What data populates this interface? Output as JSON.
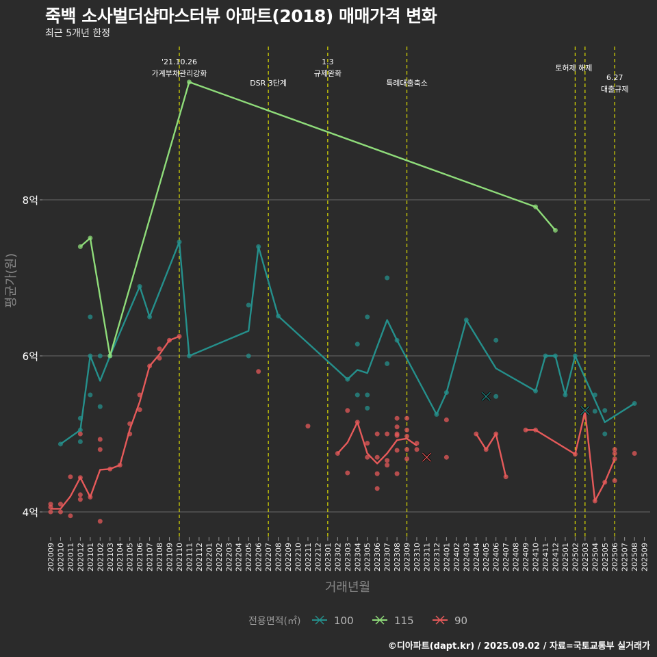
{
  "title": "죽백 소사벌더샵마스터뷰 아파트(2018) 매매가격 변화",
  "subtitle": "최근 5개년 한정",
  "footer": "©디아파트(dapt.kr) / 2025.09.02 / 자료=국토교통부 실거래가",
  "chart_data": {
    "type": "line",
    "xlabel": "거래년월",
    "ylabel": "평균가(원)",
    "ylim": [
      3.6,
      9.9
    ],
    "yticks": [
      {
        "value": 4,
        "label": "4억"
      },
      {
        "value": 6,
        "label": "6억"
      },
      {
        "value": 8,
        "label": "8억"
      }
    ],
    "grid": true,
    "categories": [
      "202009",
      "202010",
      "202011",
      "202012",
      "202101",
      "202102",
      "202103",
      "202104",
      "202105",
      "202106",
      "202107",
      "202108",
      "202109",
      "202110",
      "202111",
      "202112",
      "202201",
      "202202",
      "202203",
      "202204",
      "202205",
      "202206",
      "202207",
      "202208",
      "202209",
      "202210",
      "202211",
      "202212",
      "202301",
      "202302",
      "202303",
      "202304",
      "202305",
      "202306",
      "202307",
      "202308",
      "202309",
      "202310",
      "202311",
      "202312",
      "202401",
      "202402",
      "202403",
      "202404",
      "202405",
      "202406",
      "202407",
      "202408",
      "202409",
      "202410",
      "202411",
      "202412",
      "202501",
      "202502",
      "202503",
      "202504",
      "202505",
      "202506",
      "202507",
      "202508",
      "202509"
    ],
    "legend": {
      "title": "전용면적(㎡)",
      "position": "bottom"
    },
    "series": [
      {
        "name": "100",
        "color": "#25908c",
        "line": [
          [
            "202010",
            4.87
          ],
          [
            "202012",
            5.05
          ],
          [
            "202101",
            6.0
          ],
          [
            "202102",
            5.68
          ],
          [
            "202103",
            6.0
          ],
          [
            "202106",
            6.89
          ],
          [
            "202107",
            6.5
          ],
          [
            "202110",
            7.46
          ],
          [
            "202111",
            6.0
          ],
          [
            "202205",
            6.32
          ],
          [
            "202206",
            7.4
          ],
          [
            "202208",
            6.51
          ],
          [
            "202303",
            5.7
          ],
          [
            "202304",
            5.82
          ],
          [
            "202305",
            5.78
          ],
          [
            "202307",
            6.46
          ],
          [
            "202308",
            6.2
          ],
          [
            "202312",
            5.25
          ],
          [
            "202401",
            5.53
          ],
          [
            "202403",
            6.46
          ],
          [
            "202406",
            5.84
          ],
          [
            "202410",
            5.55
          ],
          [
            "202411",
            6.0
          ],
          [
            "202412",
            6.0
          ],
          [
            "202501",
            5.5
          ],
          [
            "202502",
            6.0
          ],
          [
            "202505",
            5.15
          ],
          [
            "202508",
            5.39
          ]
        ],
        "points": [
          [
            "202010",
            4.87
          ],
          [
            "202012",
            5.05
          ],
          [
            "202012",
            5.2
          ],
          [
            "202012",
            4.9
          ],
          [
            "202101",
            6.0
          ],
          [
            "202101",
            6.5
          ],
          [
            "202101",
            5.5
          ],
          [
            "202102",
            6.0
          ],
          [
            "202102",
            5.35
          ],
          [
            "202103",
            6.0
          ],
          [
            "202106",
            6.89
          ],
          [
            "202107",
            6.5
          ],
          [
            "202110",
            7.46
          ],
          [
            "202111",
            6.0
          ],
          [
            "202205",
            6.65
          ],
          [
            "202205",
            6.0
          ],
          [
            "202206",
            7.4
          ],
          [
            "202208",
            6.51
          ],
          [
            "202303",
            5.7
          ],
          [
            "202304",
            6.15
          ],
          [
            "202304",
            5.5
          ],
          [
            "202305",
            6.5
          ],
          [
            "202305",
            5.5
          ],
          [
            "202305",
            5.33
          ],
          [
            "202307",
            7.0
          ],
          [
            "202307",
            5.9
          ],
          [
            "202308",
            6.2
          ],
          [
            "202312",
            5.25
          ],
          [
            "202401",
            5.53
          ],
          [
            "202403",
            6.46
          ],
          [
            "202406",
            6.2
          ],
          [
            "202406",
            5.48
          ],
          [
            "202410",
            5.55
          ],
          [
            "202411",
            6.0
          ],
          [
            "202412",
            6.0
          ],
          [
            "202501",
            5.5
          ],
          [
            "202502",
            6.0
          ],
          [
            "202504",
            5.5
          ],
          [
            "202504",
            5.29
          ],
          [
            "202505",
            5.3
          ],
          [
            "202505",
            5.0
          ],
          [
            "202508",
            5.39
          ]
        ]
      },
      {
        "name": "115",
        "color": "#8fdc7a",
        "line": [
          [
            "202012",
            7.4
          ],
          [
            "202101",
            7.51
          ],
          [
            "202103",
            6.0
          ],
          [
            "202111",
            9.51
          ],
          [
            "202410",
            7.91
          ],
          [
            "202412",
            7.61
          ]
        ],
        "points": [
          [
            "202012",
            7.4
          ],
          [
            "202101",
            7.51
          ],
          [
            "202103",
            6.0
          ],
          [
            "202111",
            9.51
          ],
          [
            "202410",
            7.91
          ],
          [
            "202412",
            7.61
          ]
        ]
      },
      {
        "name": "90",
        "color": "#e65a5a",
        "line": [
          [
            "202009",
            4.04
          ],
          [
            "202010",
            4.04
          ],
          [
            "202011",
            4.2
          ],
          [
            "202012",
            4.44
          ],
          [
            "202101",
            4.19
          ],
          [
            "202102",
            4.54
          ],
          [
            "202103",
            4.55
          ],
          [
            "202104",
            4.6
          ],
          [
            "202105",
            5.06
          ],
          [
            "202106",
            5.41
          ],
          [
            "202107",
            5.87
          ],
          [
            "202108",
            6.02
          ],
          [
            "202109",
            6.2
          ],
          [
            "202110",
            6.25
          ],
          null,
          [
            "202302",
            4.75
          ],
          [
            "202303",
            4.89
          ],
          [
            "202304",
            5.15
          ],
          [
            "202305",
            4.75
          ],
          [
            "202306",
            4.62
          ],
          [
            "202307",
            4.75
          ],
          [
            "202308",
            4.92
          ],
          [
            "202309",
            4.94
          ],
          [
            "202310",
            4.85
          ],
          null,
          [
            "202404",
            5.0
          ],
          [
            "202405",
            4.8
          ],
          [
            "202406",
            5.0
          ],
          [
            "202407",
            4.45
          ],
          null,
          [
            "202409",
            5.05
          ],
          [
            "202410",
            5.05
          ],
          [
            "202502",
            4.74
          ],
          [
            "202503",
            5.29
          ],
          [
            "202504",
            4.14
          ],
          [
            "202505",
            4.38
          ],
          [
            "202506",
            4.68
          ]
        ],
        "points": [
          [
            "202009",
            4.1
          ],
          [
            "202009",
            4.0
          ],
          [
            "202009",
            4.06
          ],
          [
            "202010",
            4.1
          ],
          [
            "202010",
            4.0
          ],
          [
            "202011",
            4.45
          ],
          [
            "202011",
            3.95
          ],
          [
            "202012",
            5.0
          ],
          [
            "202012",
            4.44
          ],
          [
            "202012",
            4.22
          ],
          [
            "202012",
            4.16
          ],
          [
            "202101",
            4.19
          ],
          [
            "202102",
            4.93
          ],
          [
            "202102",
            4.8
          ],
          [
            "202102",
            3.88
          ],
          [
            "202103",
            4.55
          ],
          [
            "202104",
            4.6
          ],
          [
            "202105",
            5.13
          ],
          [
            "202105",
            5.0
          ],
          [
            "202106",
            5.5
          ],
          [
            "202106",
            5.31
          ],
          [
            "202107",
            5.87
          ],
          [
            "202108",
            6.09
          ],
          [
            "202108",
            5.97
          ],
          [
            "202109",
            6.2
          ],
          [
            "202110",
            6.25
          ],
          [
            "202206",
            5.8
          ],
          [
            "202211",
            5.1
          ],
          [
            "202302",
            4.75
          ],
          [
            "202303",
            5.3
          ],
          [
            "202303",
            4.5
          ],
          [
            "202304",
            5.15
          ],
          [
            "202305",
            4.88
          ],
          [
            "202305",
            4.7
          ],
          [
            "202306",
            5.0
          ],
          [
            "202306",
            4.7
          ],
          [
            "202306",
            4.49
          ],
          [
            "202306",
            4.3
          ],
          [
            "202307",
            5.0
          ],
          [
            "202307",
            4.66
          ],
          [
            "202307",
            4.6
          ],
          [
            "202308",
            5.2
          ],
          [
            "202308",
            5.09
          ],
          [
            "202308",
            5.0
          ],
          [
            "202308",
            4.98
          ],
          [
            "202308",
            4.79
          ],
          [
            "202308",
            4.49
          ],
          [
            "202309",
            5.2
          ],
          [
            "202309",
            5.05
          ],
          [
            "202309",
            4.97
          ],
          [
            "202309",
            4.8
          ],
          [
            "202309",
            4.68
          ],
          [
            "202310",
            4.88
          ],
          [
            "202310",
            4.8
          ],
          [
            "202401",
            5.18
          ],
          [
            "202401",
            4.7
          ],
          [
            "202404",
            5.0
          ],
          [
            "202405",
            4.8
          ],
          [
            "202406",
            5.0
          ],
          [
            "202407",
            4.45
          ],
          [
            "202409",
            5.05
          ],
          [
            "202410",
            5.05
          ],
          [
            "202502",
            4.74
          ],
          [
            "202503",
            5.29
          ],
          [
            "202504",
            4.14
          ],
          [
            "202505",
            4.38
          ],
          [
            "202506",
            4.8
          ],
          [
            "202506",
            4.75
          ],
          [
            "202506",
            4.68
          ],
          [
            "202506",
            4.4
          ],
          [
            "202508",
            4.75
          ]
        ]
      }
    ],
    "cancelled": [
      {
        "series": "100",
        "month": "202405",
        "value": 5.48
      },
      {
        "series": "100",
        "month": "202503",
        "value": 5.3
      },
      {
        "series": "90",
        "month": "202311",
        "value": 4.7
      }
    ],
    "events": [
      {
        "month": "202110",
        "lines": [
          "'21.10.26",
          "가계부채관리강화"
        ],
        "level": 0
      },
      {
        "month": "202207",
        "lines": [
          "DSR 3단계"
        ],
        "level": 2
      },
      {
        "month": "202301",
        "lines": [
          "1.3",
          "규제완화"
        ],
        "level": 0
      },
      {
        "month": "202309",
        "lines": [
          "특례대출축소"
        ],
        "level": 2
      },
      {
        "month": "202502",
        "lines": [
          "토허제 해제"
        ],
        "level": 1
      },
      {
        "month": "202503",
        "lines": [],
        "level": 1
      },
      {
        "month": "202506",
        "lines": [
          "6.27",
          "대출규제"
        ],
        "level": 3
      }
    ]
  }
}
